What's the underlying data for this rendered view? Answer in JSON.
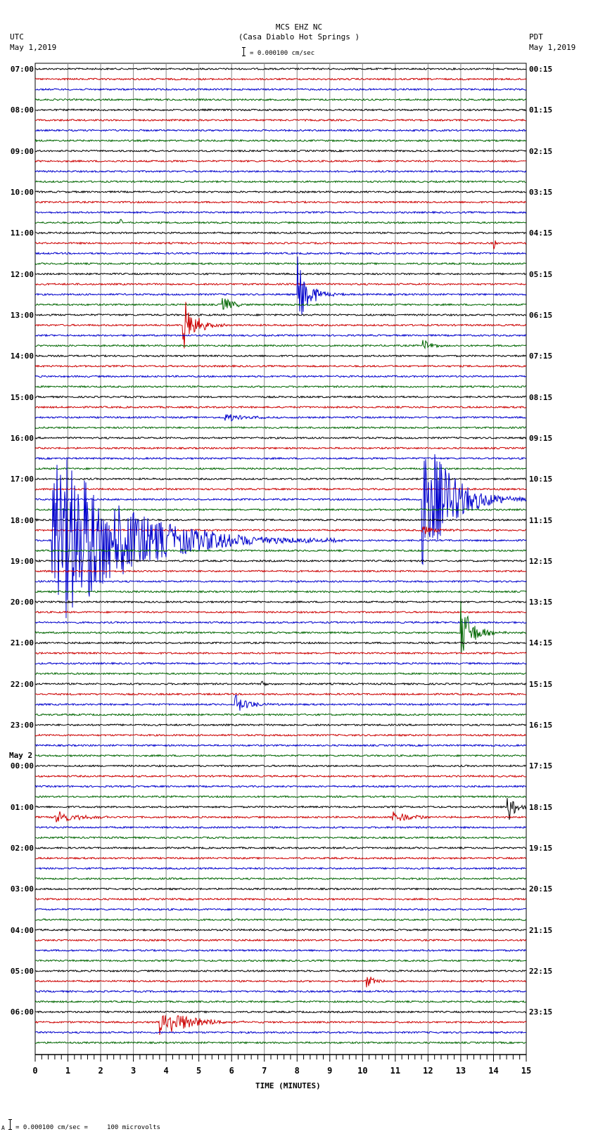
{
  "header": {
    "station": "MCS EHZ NC",
    "location": "(Casa Diablo Hot Springs )",
    "scale_text": "= 0.000100 cm/sec",
    "left_tz": "UTC",
    "left_date": "May 1,2019",
    "right_tz": "PDT",
    "right_date": "May 1,2019"
  },
  "footer": {
    "scale_text": "= 0.000100 cm/sec =     100 microvolts",
    "marker": "A"
  },
  "colors": {
    "trace_cycle": [
      "#000000",
      "#cc0000",
      "#0000cc",
      "#006600"
    ],
    "grid": "#888888"
  },
  "chart_data": {
    "type": "helicorder",
    "title": "MCS EHZ NC (Casa Diablo Hot Springs )",
    "xlabel": "TIME (MINUTES)",
    "x_ticks": [
      "0",
      "1",
      "2",
      "3",
      "4",
      "5",
      "6",
      "7",
      "8",
      "9",
      "10",
      "11",
      "12",
      "13",
      "14",
      "15"
    ],
    "xlim": [
      0,
      15
    ],
    "minutes_per_line": 15,
    "lines_per_hour": 4,
    "left_labels_utc": [
      "07:00",
      "08:00",
      "09:00",
      "10:00",
      "11:00",
      "12:00",
      "13:00",
      "14:00",
      "15:00",
      "16:00",
      "17:00",
      "18:00",
      "19:00",
      "20:00",
      "21:00",
      "22:00",
      "23:00",
      "May 2\n00:00",
      "01:00",
      "02:00",
      "03:00",
      "04:00",
      "05:00",
      "06:00"
    ],
    "right_labels_pdt": [
      "00:15",
      "01:15",
      "02:15",
      "03:15",
      "04:15",
      "05:15",
      "06:15",
      "07:15",
      "08:15",
      "09:15",
      "10:15",
      "11:15",
      "12:15",
      "13:15",
      "14:15",
      "15:15",
      "16:15",
      "17:15",
      "18:15",
      "19:15",
      "20:15",
      "21:15",
      "22:15",
      "23:15"
    ],
    "events": [
      {
        "line": 15,
        "minute": 2.6,
        "amp": 6,
        "dur": 0.1
      },
      {
        "line": 17,
        "minute": 14.0,
        "amp": 10,
        "dur": 0.1
      },
      {
        "line": 22,
        "minute": 8.0,
        "amp": 55,
        "dur": 0.5
      },
      {
        "line": 23,
        "minute": 5.7,
        "amp": 14,
        "dur": 0.4
      },
      {
        "line": 25,
        "minute": 4.5,
        "amp": 45,
        "dur": 0.5
      },
      {
        "line": 27,
        "minute": 11.8,
        "amp": 14,
        "dur": 0.3
      },
      {
        "line": 34,
        "minute": 5.8,
        "amp": 6,
        "dur": 0.8
      },
      {
        "line": 42,
        "minute": 11.8,
        "amp": 110,
        "dur": 1.2
      },
      {
        "line": 45,
        "minute": 11.8,
        "amp": 8,
        "dur": 0.6
      },
      {
        "line": 46,
        "minute": 0.5,
        "amp": 145,
        "dur": 3.0
      },
      {
        "line": 55,
        "minute": 13.0,
        "amp": 45,
        "dur": 0.5
      },
      {
        "line": 60,
        "minute": 6.9,
        "amp": 6,
        "dur": 0.2
      },
      {
        "line": 62,
        "minute": 6.1,
        "amp": 14,
        "dur": 0.6
      },
      {
        "line": 73,
        "minute": 0.6,
        "amp": 10,
        "dur": 1.0
      },
      {
        "line": 73,
        "minute": 10.9,
        "amp": 10,
        "dur": 0.8
      },
      {
        "line": 72,
        "minute": 14.4,
        "amp": 30,
        "dur": 0.3
      },
      {
        "line": 76,
        "minute": 9.3,
        "amp": 5,
        "dur": 0.2
      },
      {
        "line": 89,
        "minute": 10.1,
        "amp": 10,
        "dur": 0.4
      },
      {
        "line": 93,
        "minute": 3.8,
        "amp": 25,
        "dur": 1.2
      }
    ]
  }
}
